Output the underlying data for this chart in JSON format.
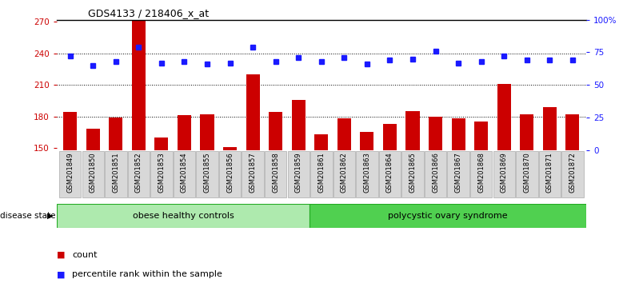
{
  "title": "GDS4133 / 218406_x_at",
  "samples": [
    "GSM201849",
    "GSM201850",
    "GSM201851",
    "GSM201852",
    "GSM201853",
    "GSM201854",
    "GSM201855",
    "GSM201856",
    "GSM201857",
    "GSM201858",
    "GSM201859",
    "GSM201861",
    "GSM201862",
    "GSM201863",
    "GSM201864",
    "GSM201865",
    "GSM201866",
    "GSM201867",
    "GSM201868",
    "GSM201869",
    "GSM201870",
    "GSM201871",
    "GSM201872"
  ],
  "counts": [
    184,
    168,
    179,
    271,
    160,
    181,
    182,
    151,
    220,
    184,
    196,
    163,
    178,
    165,
    173,
    185,
    180,
    178,
    175,
    211,
    182,
    189,
    182
  ],
  "percentiles": [
    72,
    65,
    68,
    79,
    67,
    68,
    66,
    67,
    79,
    68,
    71,
    68,
    71,
    66,
    69,
    70,
    76,
    67,
    68,
    72,
    69,
    69,
    69
  ],
  "groups": {
    "obese healthy controls": [
      0,
      11
    ],
    "polycystic ovary syndrome": [
      11,
      23
    ]
  },
  "ylim_left": [
    148,
    272
  ],
  "ylim_right": [
    0,
    100
  ],
  "yticks_left": [
    150,
    180,
    210,
    240,
    270
  ],
  "yticks_right": [
    0,
    25,
    50,
    75,
    100
  ],
  "bar_color": "#cc0000",
  "dot_color": "#1a1aff",
  "group1_color": "#aeeaae",
  "group2_color": "#50d050",
  "bg_color": "#ffffff",
  "title_color": "#000000",
  "left_axis_color": "#cc0000",
  "right_axis_color": "#1a1aff",
  "n_obese": 11,
  "n_pcos": 12
}
